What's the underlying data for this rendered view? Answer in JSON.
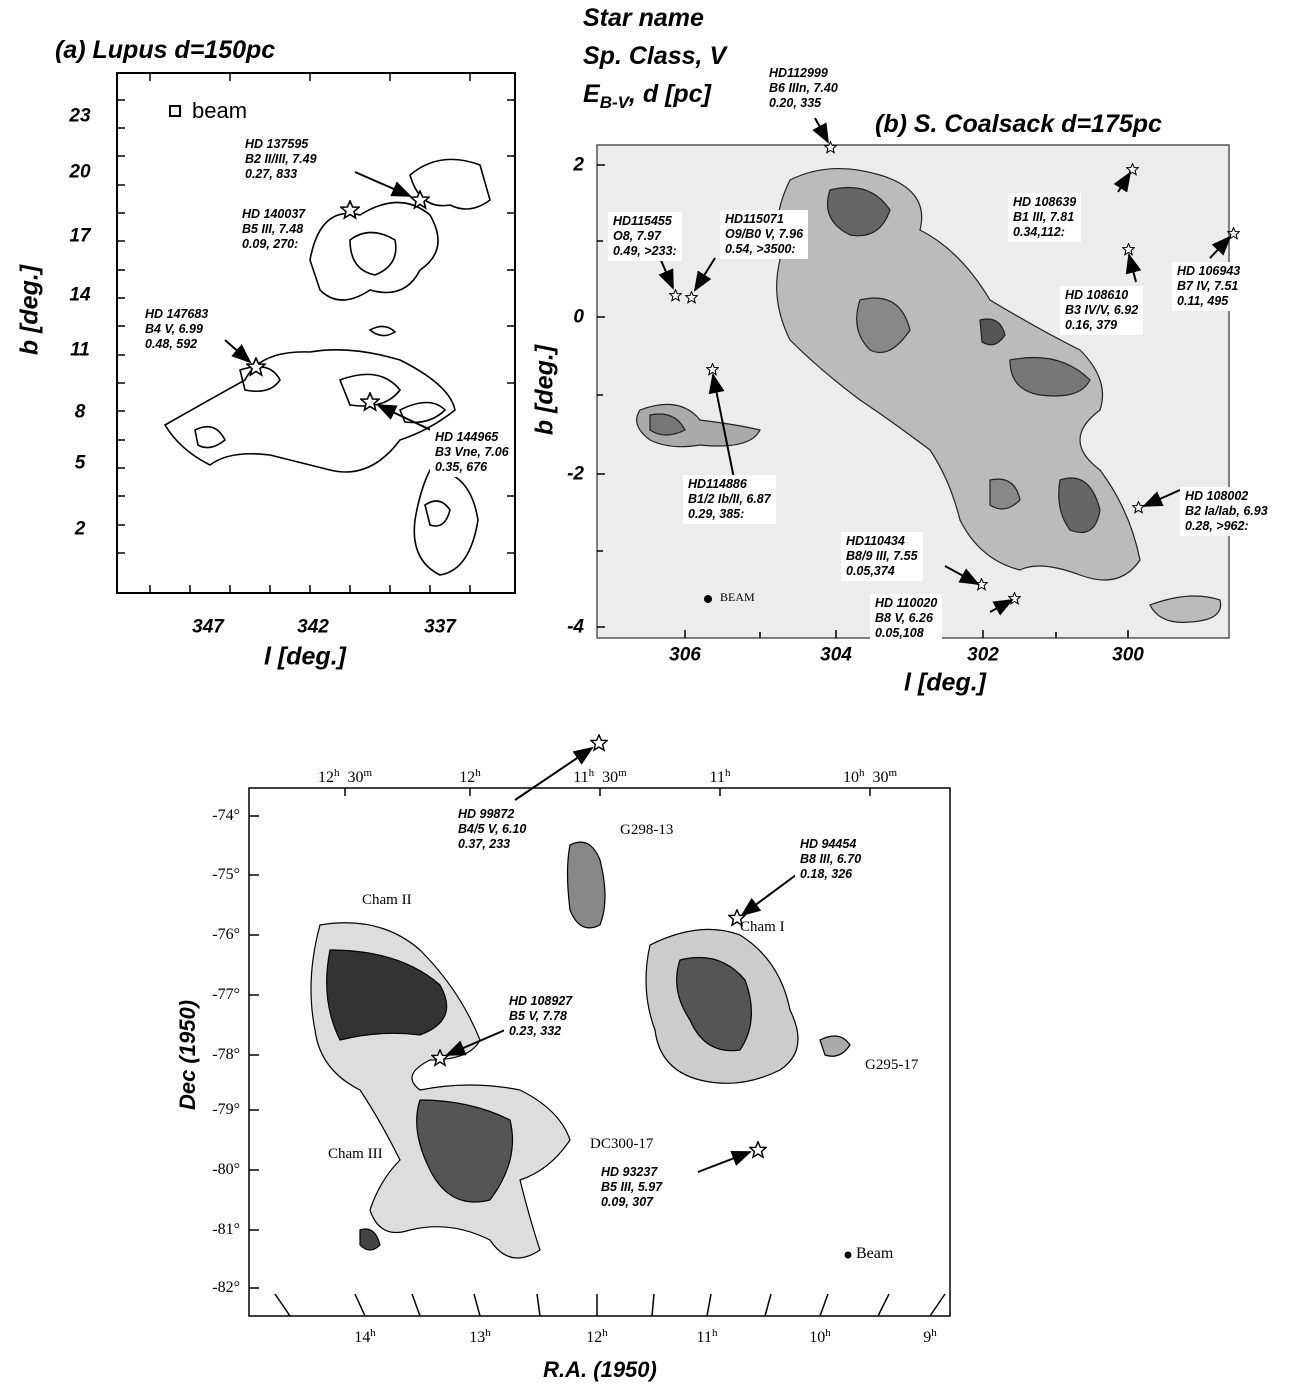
{
  "legend_key": {
    "line1": "Star name",
    "line2": "Sp. Class, V",
    "line3": {
      "main": "E",
      "sub": "B-V",
      "rest": ", d [pc]"
    }
  },
  "panels": [
    {
      "title": "(a) Lupus d=150pc",
      "y_label": "b [deg.]",
      "x_label": "l [deg.]",
      "beam": "beam",
      "y_ticks": [
        "23",
        "20",
        "17",
        "14",
        "11",
        "8",
        "5",
        "2"
      ],
      "x_ticks": [
        "347",
        "342",
        "337"
      ],
      "stars": [
        {
          "lines": [
            "HD 137595",
            "B2 II/III, 7.49",
            "0.27, 833"
          ]
        },
        {
          "lines": [
            "HD 140037",
            "B5 III, 7.48",
            "0.09, 270:"
          ]
        },
        {
          "lines": [
            "HD 147683",
            "B4 V, 6.99",
            "0.48, 592"
          ]
        },
        {
          "lines": [
            "HD 144965",
            "B3 Vne, 7.06",
            "0.35, 676"
          ]
        }
      ]
    },
    {
      "title": "(b) S. Coalsack d=175pc",
      "y_label": "b [deg.]",
      "x_label": "l [deg.]",
      "beam": "BEAM",
      "y_ticks": [
        "2",
        "0",
        "-2",
        "-4"
      ],
      "x_ticks": [
        "306",
        "304",
        "302",
        "300"
      ],
      "stars": [
        {
          "lines": [
            "HD112999",
            "B6 IIIn, 7.40",
            "0.20, 335"
          ]
        },
        {
          "lines": [
            "HD115455",
            "O8, 7.97",
            "0.49, >233:"
          ]
        },
        {
          "lines": [
            "HD115071",
            "O9/B0 V, 7.96",
            "0.54, >3500:"
          ]
        },
        {
          "lines": [
            "HD 108639",
            "B1 III, 7.81",
            "0.34,112:"
          ]
        },
        {
          "lines": [
            "HD 106943",
            "B7 IV, 7.51",
            "0.11, 495"
          ]
        },
        {
          "lines": [
            "HD 108610",
            "B3 IV/V, 6.92",
            "0.16, 379"
          ]
        },
        {
          "lines": [
            "HD114886",
            "B1/2 Ib/II, 6.87",
            "0.29, 385:"
          ]
        },
        {
          "lines": [
            "HD 108002",
            "B2 Ia/Iab, 6.93",
            "0.28, >962:"
          ]
        },
        {
          "lines": [
            "HD110434",
            "B8/9 III, 7.55",
            "0.05,374"
          ]
        },
        {
          "lines": [
            "HD 110020",
            "B8 V, 6.26",
            "0.05,108"
          ]
        }
      ]
    },
    {
      "y_label": "Dec (1950)",
      "x_label": "R.A. (1950)",
      "beam": "Beam",
      "y_ticks": [
        "-74°",
        "-75°",
        "-76°",
        "-77°",
        "-78°",
        "-79°",
        "-80°",
        "-81°",
        "-82°"
      ],
      "x_ticks_top": [
        [
          "12",
          "h",
          "30",
          "m"
        ],
        [
          "12",
          "h"
        ],
        [
          "11",
          "h",
          "30",
          "m"
        ],
        [
          "11",
          "h"
        ],
        [
          "10",
          "h",
          "30",
          "m"
        ]
      ],
      "x_ticks_bottom": [
        [
          "14",
          "h"
        ],
        [
          "13",
          "h"
        ],
        [
          "12",
          "h"
        ],
        [
          "11",
          "h"
        ],
        [
          "10",
          "h"
        ],
        [
          "9",
          "h"
        ]
      ],
      "regions": [
        "Cham II",
        "G298-13",
        "Cham I",
        "Cham III",
        "DC300-17",
        "G295-17"
      ],
      "stars": [
        {
          "lines": [
            "HD 99872",
            "B4/5 V, 6.10",
            "0.37, 233"
          ]
        },
        {
          "lines": [
            "HD 94454",
            "B8 III, 6.70",
            "0.18, 326"
          ]
        },
        {
          "lines": [
            "HD 108927",
            "B5 V, 7.78",
            "0.23, 332"
          ]
        },
        {
          "lines": [
            "HD 93237",
            "B5 III, 5.97",
            "0.09, 307"
          ]
        }
      ]
    }
  ]
}
